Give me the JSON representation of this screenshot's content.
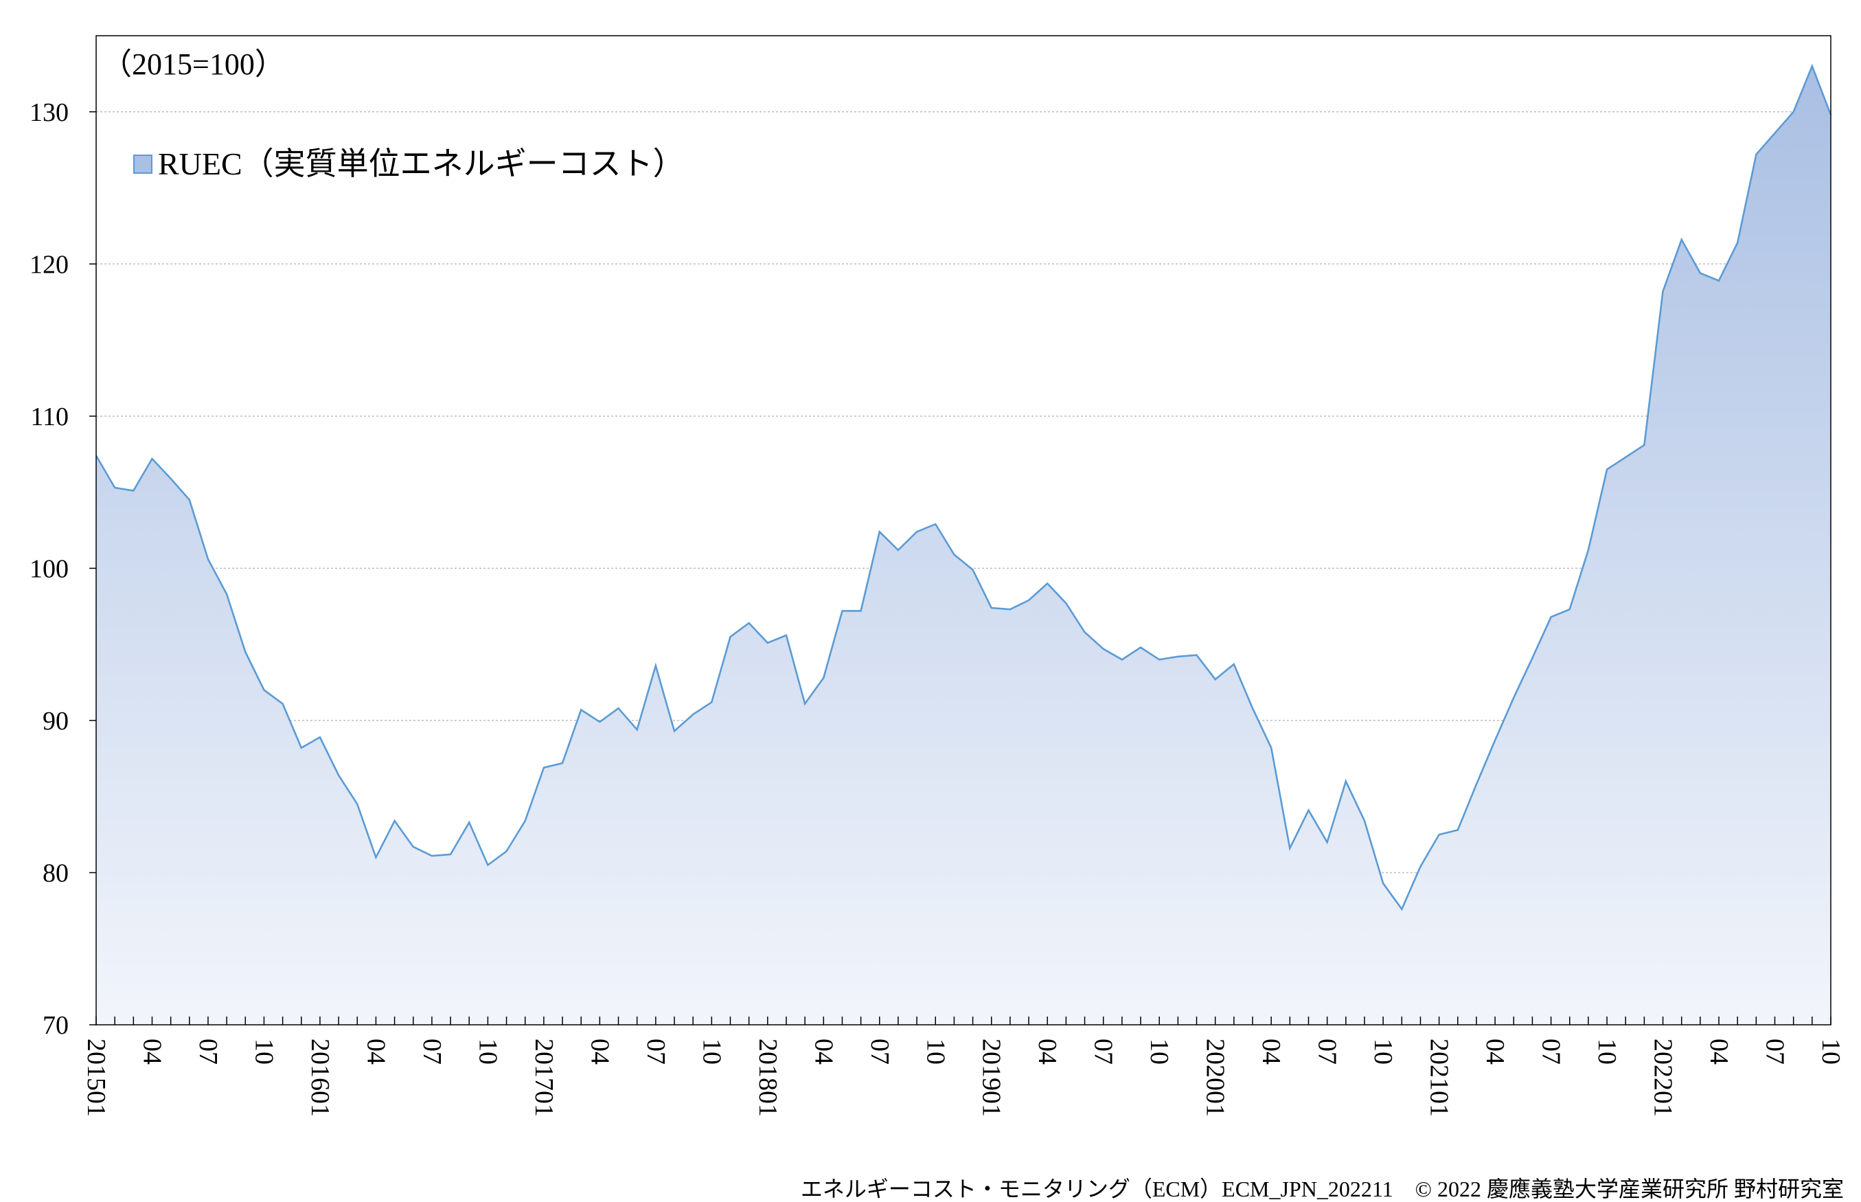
{
  "chart_data": {
    "type": "area",
    "unit_note": "（2015=100）",
    "legend_position": "top-left",
    "grid": true,
    "ylim": [
      70,
      135
    ],
    "yticks": [
      70,
      80,
      90,
      100,
      110,
      120,
      130
    ],
    "x_tick_labels": [
      "201501",
      "04",
      "07",
      "10",
      "201601",
      "04",
      "07",
      "10",
      "201701",
      "04",
      "07",
      "10",
      "201801",
      "04",
      "07",
      "10",
      "201901",
      "04",
      "07",
      "10",
      "202001",
      "04",
      "07",
      "10",
      "202101",
      "04",
      "07",
      "10",
      "202201",
      "04",
      "07",
      "10"
    ],
    "series": [
      {
        "name": "RUEC（実質単位エネルギーコスト）",
        "color": "#5b9bd5",
        "fill_top": "#a9bfe3",
        "fill_bottom": "#f2f5fb",
        "x": [
          "201501",
          "201502",
          "201503",
          "201504",
          "201505",
          "201506",
          "201507",
          "201508",
          "201509",
          "201510",
          "201511",
          "201512",
          "201601",
          "201602",
          "201603",
          "201604",
          "201605",
          "201606",
          "201607",
          "201608",
          "201609",
          "201610",
          "201611",
          "201612",
          "201701",
          "201702",
          "201703",
          "201704",
          "201705",
          "201706",
          "201707",
          "201708",
          "201709",
          "201710",
          "201711",
          "201712",
          "201801",
          "201802",
          "201803",
          "201804",
          "201805",
          "201806",
          "201807",
          "201808",
          "201809",
          "201810",
          "201811",
          "201812",
          "201901",
          "201902",
          "201903",
          "201904",
          "201905",
          "201906",
          "201907",
          "201908",
          "201909",
          "201910",
          "201911",
          "201912",
          "202001",
          "202002",
          "202003",
          "202004",
          "202005",
          "202006",
          "202007",
          "202008",
          "202009",
          "202010",
          "202011",
          "202012",
          "202101",
          "202102",
          "202103",
          "202104",
          "202105",
          "202106",
          "202107",
          "202108",
          "202109",
          "202110",
          "202111",
          "202112",
          "202201",
          "202202",
          "202203",
          "202204",
          "202205",
          "202206",
          "202207",
          "202208",
          "202209",
          "202210"
        ],
        "values": [
          107.4,
          105.3,
          105.1,
          107.2,
          105.9,
          104.5,
          100.6,
          98.3,
          94.5,
          92.0,
          91.1,
          88.2,
          88.9,
          86.4,
          84.5,
          81.0,
          83.4,
          81.7,
          81.1,
          81.2,
          83.3,
          80.5,
          81.4,
          83.4,
          86.9,
          87.2,
          90.7,
          89.9,
          90.8,
          89.4,
          93.6,
          89.3,
          90.4,
          91.2,
          95.5,
          96.4,
          95.1,
          95.6,
          91.1,
          92.8,
          97.2,
          97.2,
          102.4,
          101.2,
          102.4,
          102.9,
          100.9,
          99.9,
          97.4,
          97.3,
          97.9,
          99.0,
          97.7,
          95.8,
          94.7,
          94.0,
          94.8,
          94.0,
          94.2,
          94.3,
          92.7,
          93.7,
          90.8,
          88.2,
          81.6,
          84.1,
          82.0,
          86.0,
          83.4,
          79.3,
          77.6,
          80.4,
          82.5,
          82.8,
          85.8,
          88.7,
          91.5,
          94.1,
          96.8,
          97.3,
          101.2,
          106.5,
          107.3,
          108.1,
          118.2,
          121.6,
          119.4,
          118.9,
          121.4,
          127.2,
          128.6,
          130.0,
          133.0,
          129.8
        ]
      }
    ]
  },
  "footer": {
    "credit": "エネルギーコスト・モニタリング（ECM）ECM_JPN_202211　© 2022 慶應義塾大学産業研究所 野村研究室"
  }
}
